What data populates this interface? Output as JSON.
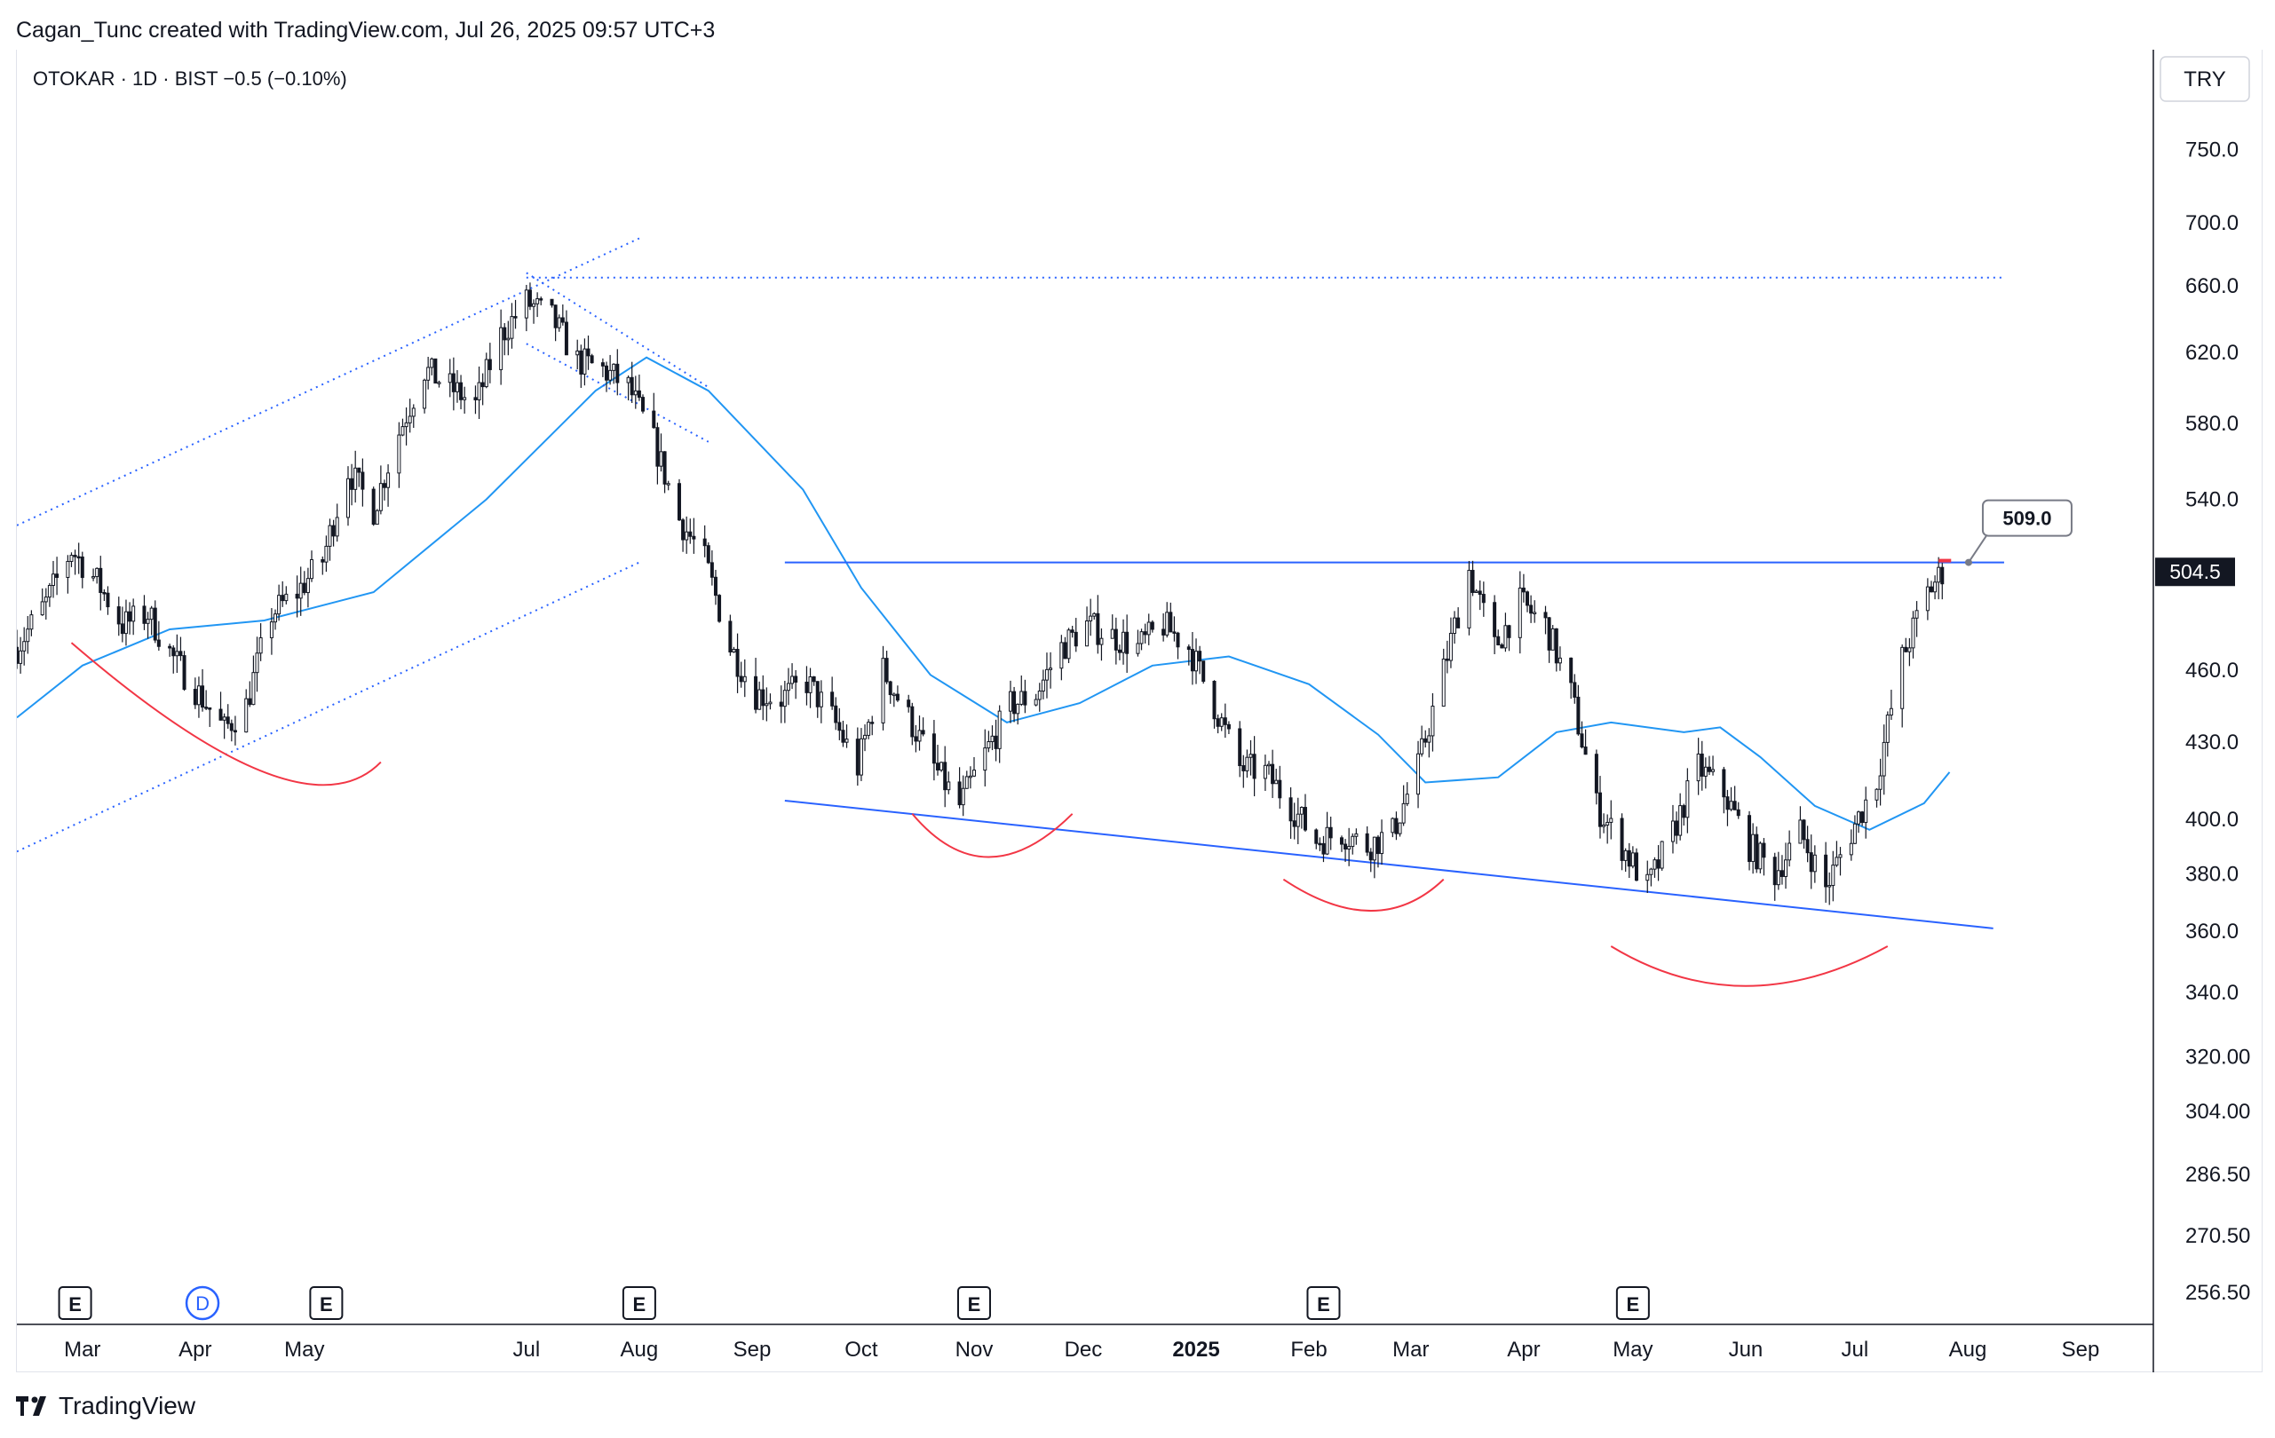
{
  "header": {
    "credit": "Cagan_Tunc created with TradingView.com, Jul 26, 2025 09:57 UTC+3"
  },
  "legend": {
    "symbol_line": "OTOKAR · 1D · BIST  −0.5 (−0.10%)"
  },
  "currency": "TRY",
  "price_label": "504.5",
  "callout_label": "509.0",
  "footer": {
    "brand": "TradingView"
  },
  "colors": {
    "up": "#ffffff",
    "down": "#131722",
    "candle_border": "#131722",
    "ma": "#2196f3",
    "trendline": "#2962ff",
    "arc": "#f23645"
  },
  "chart_data": {
    "type": "candlestick",
    "title": "OTOKAR · 1D · BIST",
    "change": "−0.5 (−0.10%)",
    "y_scale": "log",
    "ylim": [
      245,
      800
    ],
    "y_ticks": [
      750.0,
      700.0,
      660.0,
      620.0,
      580.0,
      540.0,
      460.0,
      430.0,
      400.0,
      380.0,
      360.0,
      340.0,
      320.0,
      304.0,
      286.5,
      270.5,
      256.5
    ],
    "y_tick_labels": [
      "750.0",
      "700.0",
      "660.0",
      "620.0",
      "580.0",
      "540.0",
      "460.0",
      "430.0",
      "400.0",
      "380.0",
      "360.0",
      "340.0",
      "320.00",
      "304.00",
      "286.50",
      "270.50",
      "256.50"
    ],
    "x_range": [
      "2024-02-12",
      "2025-09-21"
    ],
    "x_ticks": [
      {
        "date": "2024-03-01",
        "label": "Mar",
        "bold": false
      },
      {
        "date": "2024-04-01",
        "label": "Apr",
        "bold": false
      },
      {
        "date": "2024-05-01",
        "label": "May",
        "bold": false
      },
      {
        "date": "2024-07-01",
        "label": "Jul",
        "bold": false
      },
      {
        "date": "2024-08-01",
        "label": "Aug",
        "bold": false
      },
      {
        "date": "2024-09-01",
        "label": "Sep",
        "bold": false
      },
      {
        "date": "2024-10-01",
        "label": "Oct",
        "bold": false
      },
      {
        "date": "2024-11-01",
        "label": "Nov",
        "bold": false
      },
      {
        "date": "2024-12-01",
        "label": "Dec",
        "bold": false
      },
      {
        "date": "2025-01-01",
        "label": "2025",
        "bold": true
      },
      {
        "date": "2025-02-01",
        "label": "Feb",
        "bold": false
      },
      {
        "date": "2025-03-01",
        "label": "Mar",
        "bold": false
      },
      {
        "date": "2025-04-01",
        "label": "Apr",
        "bold": false
      },
      {
        "date": "2025-05-01",
        "label": "May",
        "bold": false
      },
      {
        "date": "2025-06-01",
        "label": "Jun",
        "bold": false
      },
      {
        "date": "2025-07-01",
        "label": "Jul",
        "bold": false
      },
      {
        "date": "2025-08-01",
        "label": "Aug",
        "bold": false
      },
      {
        "date": "2025-09-01",
        "label": "Sep",
        "bold": false
      }
    ],
    "price_path": [
      [
        "2024-02-12",
        470
      ],
      [
        "2024-02-20",
        490
      ],
      [
        "2024-02-27",
        515
      ],
      [
        "2024-03-05",
        500
      ],
      [
        "2024-03-12",
        480
      ],
      [
        "2024-03-19",
        485
      ],
      [
        "2024-03-26",
        465
      ],
      [
        "2024-04-02",
        450
      ],
      [
        "2024-04-09",
        435
      ],
      [
        "2024-04-15",
        445
      ],
      [
        "2024-04-22",
        485
      ],
      [
        "2024-04-29",
        495
      ],
      [
        "2024-05-06",
        510
      ],
      [
        "2024-05-13",
        555
      ],
      [
        "2024-05-20",
        535
      ],
      [
        "2024-05-27",
        575
      ],
      [
        "2024-06-03",
        610
      ],
      [
        "2024-06-10",
        600
      ],
      [
        "2024-06-17",
        590
      ],
      [
        "2024-06-24",
        630
      ],
      [
        "2024-07-01",
        650
      ],
      [
        "2024-07-08",
        640
      ],
      [
        "2024-07-15",
        615
      ],
      [
        "2024-07-22",
        610
      ],
      [
        "2024-07-29",
        600
      ],
      [
        "2024-08-05",
        570
      ],
      [
        "2024-08-12",
        530
      ],
      [
        "2024-08-19",
        510
      ],
      [
        "2024-08-26",
        470
      ],
      [
        "2024-09-02",
        450
      ],
      [
        "2024-09-09",
        448
      ],
      [
        "2024-09-16",
        455
      ],
      [
        "2024-09-23",
        440
      ],
      [
        "2024-09-30",
        420
      ],
      [
        "2024-10-07",
        460
      ],
      [
        "2024-10-14",
        440
      ],
      [
        "2024-10-21",
        420
      ],
      [
        "2024-10-28",
        405
      ],
      [
        "2024-11-04",
        425
      ],
      [
        "2024-11-11",
        445
      ],
      [
        "2024-11-18",
        450
      ],
      [
        "2024-11-25",
        470
      ],
      [
        "2024-12-02",
        480
      ],
      [
        "2024-12-09",
        475
      ],
      [
        "2024-12-16",
        470
      ],
      [
        "2024-12-23",
        480
      ],
      [
        "2024-12-30",
        470
      ],
      [
        "2025-01-06",
        445
      ],
      [
        "2025-01-13",
        420
      ],
      [
        "2025-01-20",
        418
      ],
      [
        "2025-01-27",
        405
      ],
      [
        "2025-02-03",
        392
      ],
      [
        "2025-02-10",
        395
      ],
      [
        "2025-02-17",
        390
      ],
      [
        "2025-02-24",
        395
      ],
      [
        "2025-03-03",
        420
      ],
      [
        "2025-03-10",
        460
      ],
      [
        "2025-03-17",
        505
      ],
      [
        "2025-03-24",
        470
      ],
      [
        "2025-03-31",
        490
      ],
      [
        "2025-04-07",
        480
      ],
      [
        "2025-04-14",
        450
      ],
      [
        "2025-04-21",
        405
      ],
      [
        "2025-04-28",
        390
      ],
      [
        "2025-05-05",
        375
      ],
      [
        "2025-05-12",
        395
      ],
      [
        "2025-05-19",
        420
      ],
      [
        "2025-05-26",
        410
      ],
      [
        "2025-06-02",
        390
      ],
      [
        "2025-06-09",
        380
      ],
      [
        "2025-06-16",
        395
      ],
      [
        "2025-06-23",
        375
      ],
      [
        "2025-06-30",
        395
      ],
      [
        "2025-07-07",
        415
      ],
      [
        "2025-07-14",
        465
      ],
      [
        "2025-07-21",
        495
      ],
      [
        "2025-07-25",
        504.5
      ]
    ],
    "moving_average": [
      [
        "2024-02-12",
        440
      ],
      [
        "2024-03-01",
        462
      ],
      [
        "2024-03-25",
        478
      ],
      [
        "2024-04-20",
        482
      ],
      [
        "2024-05-20",
        495
      ],
      [
        "2024-06-20",
        540
      ],
      [
        "2024-07-20",
        598
      ],
      [
        "2024-08-03",
        617
      ],
      [
        "2024-08-20",
        598
      ],
      [
        "2024-09-15",
        545
      ],
      [
        "2024-10-01",
        497
      ],
      [
        "2024-10-20",
        458
      ],
      [
        "2024-11-10",
        438
      ],
      [
        "2024-11-30",
        446
      ],
      [
        "2024-12-20",
        462
      ],
      [
        "2025-01-10",
        466
      ],
      [
        "2025-02-01",
        454
      ],
      [
        "2025-02-20",
        433
      ],
      [
        "2025-03-05",
        414
      ],
      [
        "2025-03-25",
        416
      ],
      [
        "2025-04-10",
        434
      ],
      [
        "2025-04-25",
        438
      ],
      [
        "2025-05-15",
        434
      ],
      [
        "2025-05-25",
        436
      ],
      [
        "2025-06-05",
        424
      ],
      [
        "2025-06-20",
        405
      ],
      [
        "2025-07-05",
        396
      ],
      [
        "2025-07-20",
        406
      ],
      [
        "2025-07-27",
        418
      ]
    ],
    "horizontal_lines": [
      {
        "start": "2024-09-10",
        "end": "2025-08-11",
        "price": 509,
        "style": "solid"
      },
      {
        "start": "2024-07-01",
        "end": "2025-08-11",
        "price": 665,
        "style": "dotted"
      }
    ],
    "trendlines": [
      {
        "from": [
          "2024-09-10",
          407
        ],
        "to": [
          "2025-08-08",
          361
        ],
        "style": "solid"
      },
      {
        "from": [
          "2024-02-12",
          527
        ],
        "to": [
          "2024-08-01",
          690
        ],
        "style": "dotted"
      },
      {
        "from": [
          "2024-02-12",
          388
        ],
        "to": [
          "2024-08-01",
          509
        ],
        "style": "dotted"
      },
      {
        "from": [
          "2024-07-01",
          668
        ],
        "to": [
          "2024-08-20",
          600
        ],
        "style": "dotted"
      },
      {
        "from": [
          "2024-07-01",
          625
        ],
        "to": [
          "2024-08-20",
          570
        ],
        "style": "dotted"
      }
    ],
    "arcs": [
      {
        "from": [
          "2024-02-27",
          472
        ],
        "mid": [
          "2024-04-20",
          418
        ],
        "to": [
          "2024-05-22",
          422
        ]
      },
      {
        "from": [
          "2024-10-15",
          402
        ],
        "mid": [
          "2024-11-05",
          386
        ],
        "to": [
          "2024-11-28",
          402
        ]
      },
      {
        "from": [
          "2025-01-25",
          378
        ],
        "mid": [
          "2025-02-18",
          367
        ],
        "to": [
          "2025-03-10",
          378
        ]
      },
      {
        "from": [
          "2025-04-25",
          355
        ],
        "mid": [
          "2025-06-01",
          342
        ],
        "to": [
          "2025-07-10",
          355
        ]
      }
    ],
    "event_markers": [
      {
        "date": "2024-02-28",
        "label": "E"
      },
      {
        "date": "2024-04-03",
        "label": "D"
      },
      {
        "date": "2024-05-07",
        "label": "E"
      },
      {
        "date": "2024-08-01",
        "label": "E"
      },
      {
        "date": "2024-11-01",
        "label": "E"
      },
      {
        "date": "2025-02-05",
        "label": "E"
      },
      {
        "date": "2025-05-01",
        "label": "E"
      }
    ]
  }
}
